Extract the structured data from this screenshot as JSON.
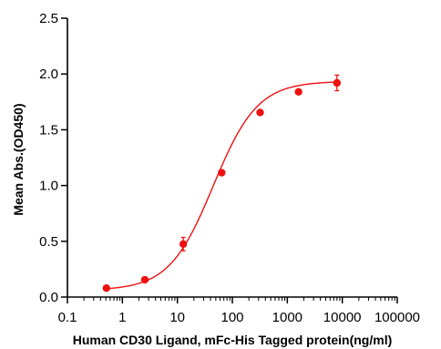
{
  "chart_data": {
    "type": "scatter",
    "title": "",
    "xlabel": "Human CD30 Ligand, mFc-His Tagged protein(ng/ml)",
    "ylabel": "Mean Abs.(OD450)",
    "xscale": "log",
    "xlim": [
      0.1,
      100000
    ],
    "ylim": [
      0,
      2.5
    ],
    "x_ticks": [
      0.1,
      1,
      10,
      100,
      1000,
      10000,
      100000
    ],
    "x_tick_labels": [
      "0.1",
      "1",
      "10",
      "100",
      "1000",
      "10000",
      "100000"
    ],
    "y_ticks": [
      0,
      0.5,
      1.0,
      1.5,
      2.0,
      2.5
    ],
    "y_tick_labels": [
      "0.0",
      "0.5",
      "1.0",
      "1.5",
      "2.0",
      "2.5"
    ],
    "grid": false,
    "legend": "none",
    "series": [
      {
        "color": "#ee1111",
        "x": [
          0.512,
          2.56,
          12.8,
          64,
          320,
          1600,
          8000
        ],
        "y": [
          0.08,
          0.155,
          0.475,
          1.115,
          1.655,
          1.84,
          1.92
        ],
        "error": [
          0.01,
          0.01,
          0.06,
          0.02,
          0.01,
          0.01,
          0.07
        ]
      }
    ],
    "fit_curve": {
      "model": "4PL",
      "bottom": 0.06,
      "top": 1.935,
      "ec50": 45,
      "hill": 1.08,
      "color": "#ee1111"
    }
  }
}
